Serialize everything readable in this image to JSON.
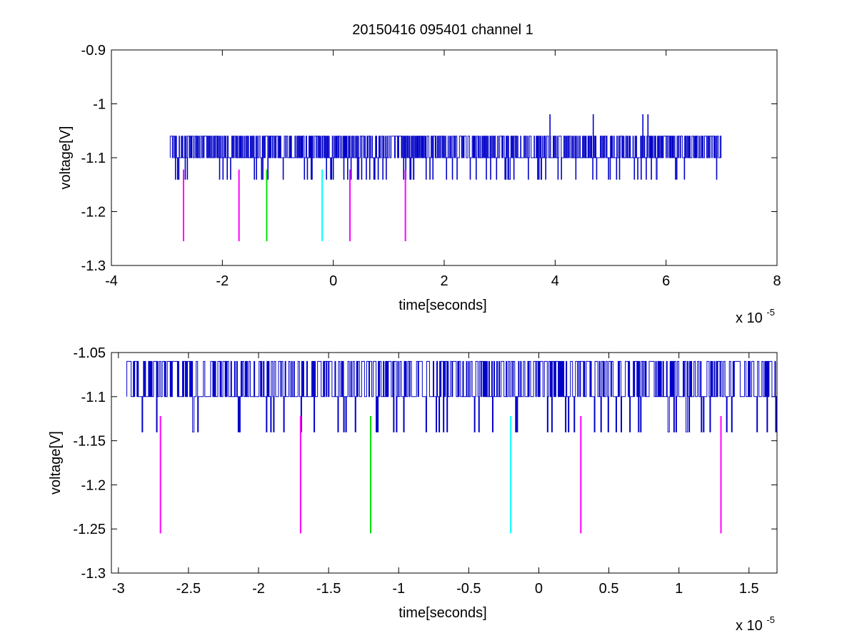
{
  "figure": {
    "title": "20150416 095401 channel 1",
    "colors": {
      "signal": "#0000c8",
      "magenta": "#ff00ff",
      "green": "#00e000",
      "cyan": "#00ffff",
      "axes": "#000000"
    }
  },
  "chart_data": [
    {
      "type": "line",
      "title": "20150416 095401 channel 1",
      "xlabel": "time[seconds]",
      "ylabel": "voltage[V]",
      "x_exponent_label": "x 10",
      "x_exponent": "-5",
      "xlim": [
        -4e-05,
        8e-05
      ],
      "ylim": [
        -1.3,
        -0.9
      ],
      "xticks": [
        -4,
        -2,
        0,
        2,
        4,
        6,
        8
      ],
      "yticks": [
        "-1.3",
        "-1.2",
        "-1.1",
        "-1",
        "-0.9"
      ],
      "signal": {
        "x_range": [
          -2.94e-05,
          7e-05
        ],
        "levels": [
          -1.14,
          -1.1,
          -1.06,
          -1.02
        ],
        "baseline": -1.1,
        "peaks_x": [
          3.9e-05,
          4.68e-05,
          5.58e-05,
          5.67e-05
        ]
      },
      "markers": [
        {
          "x": -2.7e-05,
          "y_top": -1.122,
          "y_bottom": -1.255,
          "color": "magenta"
        },
        {
          "x": -1.7e-05,
          "y_top": -1.122,
          "y_bottom": -1.255,
          "color": "magenta"
        },
        {
          "x": -1.2e-05,
          "y_top": -1.122,
          "y_bottom": -1.255,
          "color": "green"
        },
        {
          "x": -2e-06,
          "y_top": -1.122,
          "y_bottom": -1.255,
          "color": "cyan"
        },
        {
          "x": 3e-06,
          "y_top": -1.122,
          "y_bottom": -1.255,
          "color": "magenta"
        },
        {
          "x": 1.3e-05,
          "y_top": -1.122,
          "y_bottom": -1.255,
          "color": "magenta"
        }
      ]
    },
    {
      "type": "line",
      "xlabel": "time[seconds]",
      "ylabel": "voltage[V]",
      "x_exponent_label": "x 10",
      "x_exponent": "-5",
      "xlim": [
        -3.05e-05,
        1.7e-05
      ],
      "ylim": [
        -1.3,
        -1.05
      ],
      "xticks": [
        -3,
        -2.5,
        -2,
        -1.5,
        -1,
        -0.5,
        0,
        0.5,
        1,
        1.5
      ],
      "yticks": [
        "-1.3",
        "-1.25",
        "-1.2",
        "-1.15",
        "-1.1",
        "-1.05"
      ],
      "signal": {
        "x_range": [
          -2.94e-05,
          1.7e-05
        ],
        "levels": [
          -1.14,
          -1.1,
          -1.06
        ],
        "baseline": -1.1
      },
      "markers": [
        {
          "x": -2.7e-05,
          "y_top": -1.122,
          "y_bottom": -1.255,
          "color": "magenta"
        },
        {
          "x": -1.7e-05,
          "y_top": -1.122,
          "y_bottom": -1.255,
          "color": "magenta"
        },
        {
          "x": -1.2e-05,
          "y_top": -1.122,
          "y_bottom": -1.255,
          "color": "green"
        },
        {
          "x": -2e-06,
          "y_top": -1.122,
          "y_bottom": -1.255,
          "color": "cyan"
        },
        {
          "x": 3e-06,
          "y_top": -1.122,
          "y_bottom": -1.255,
          "color": "magenta"
        },
        {
          "x": 1.3e-05,
          "y_top": -1.122,
          "y_bottom": -1.255,
          "color": "magenta"
        }
      ]
    }
  ]
}
